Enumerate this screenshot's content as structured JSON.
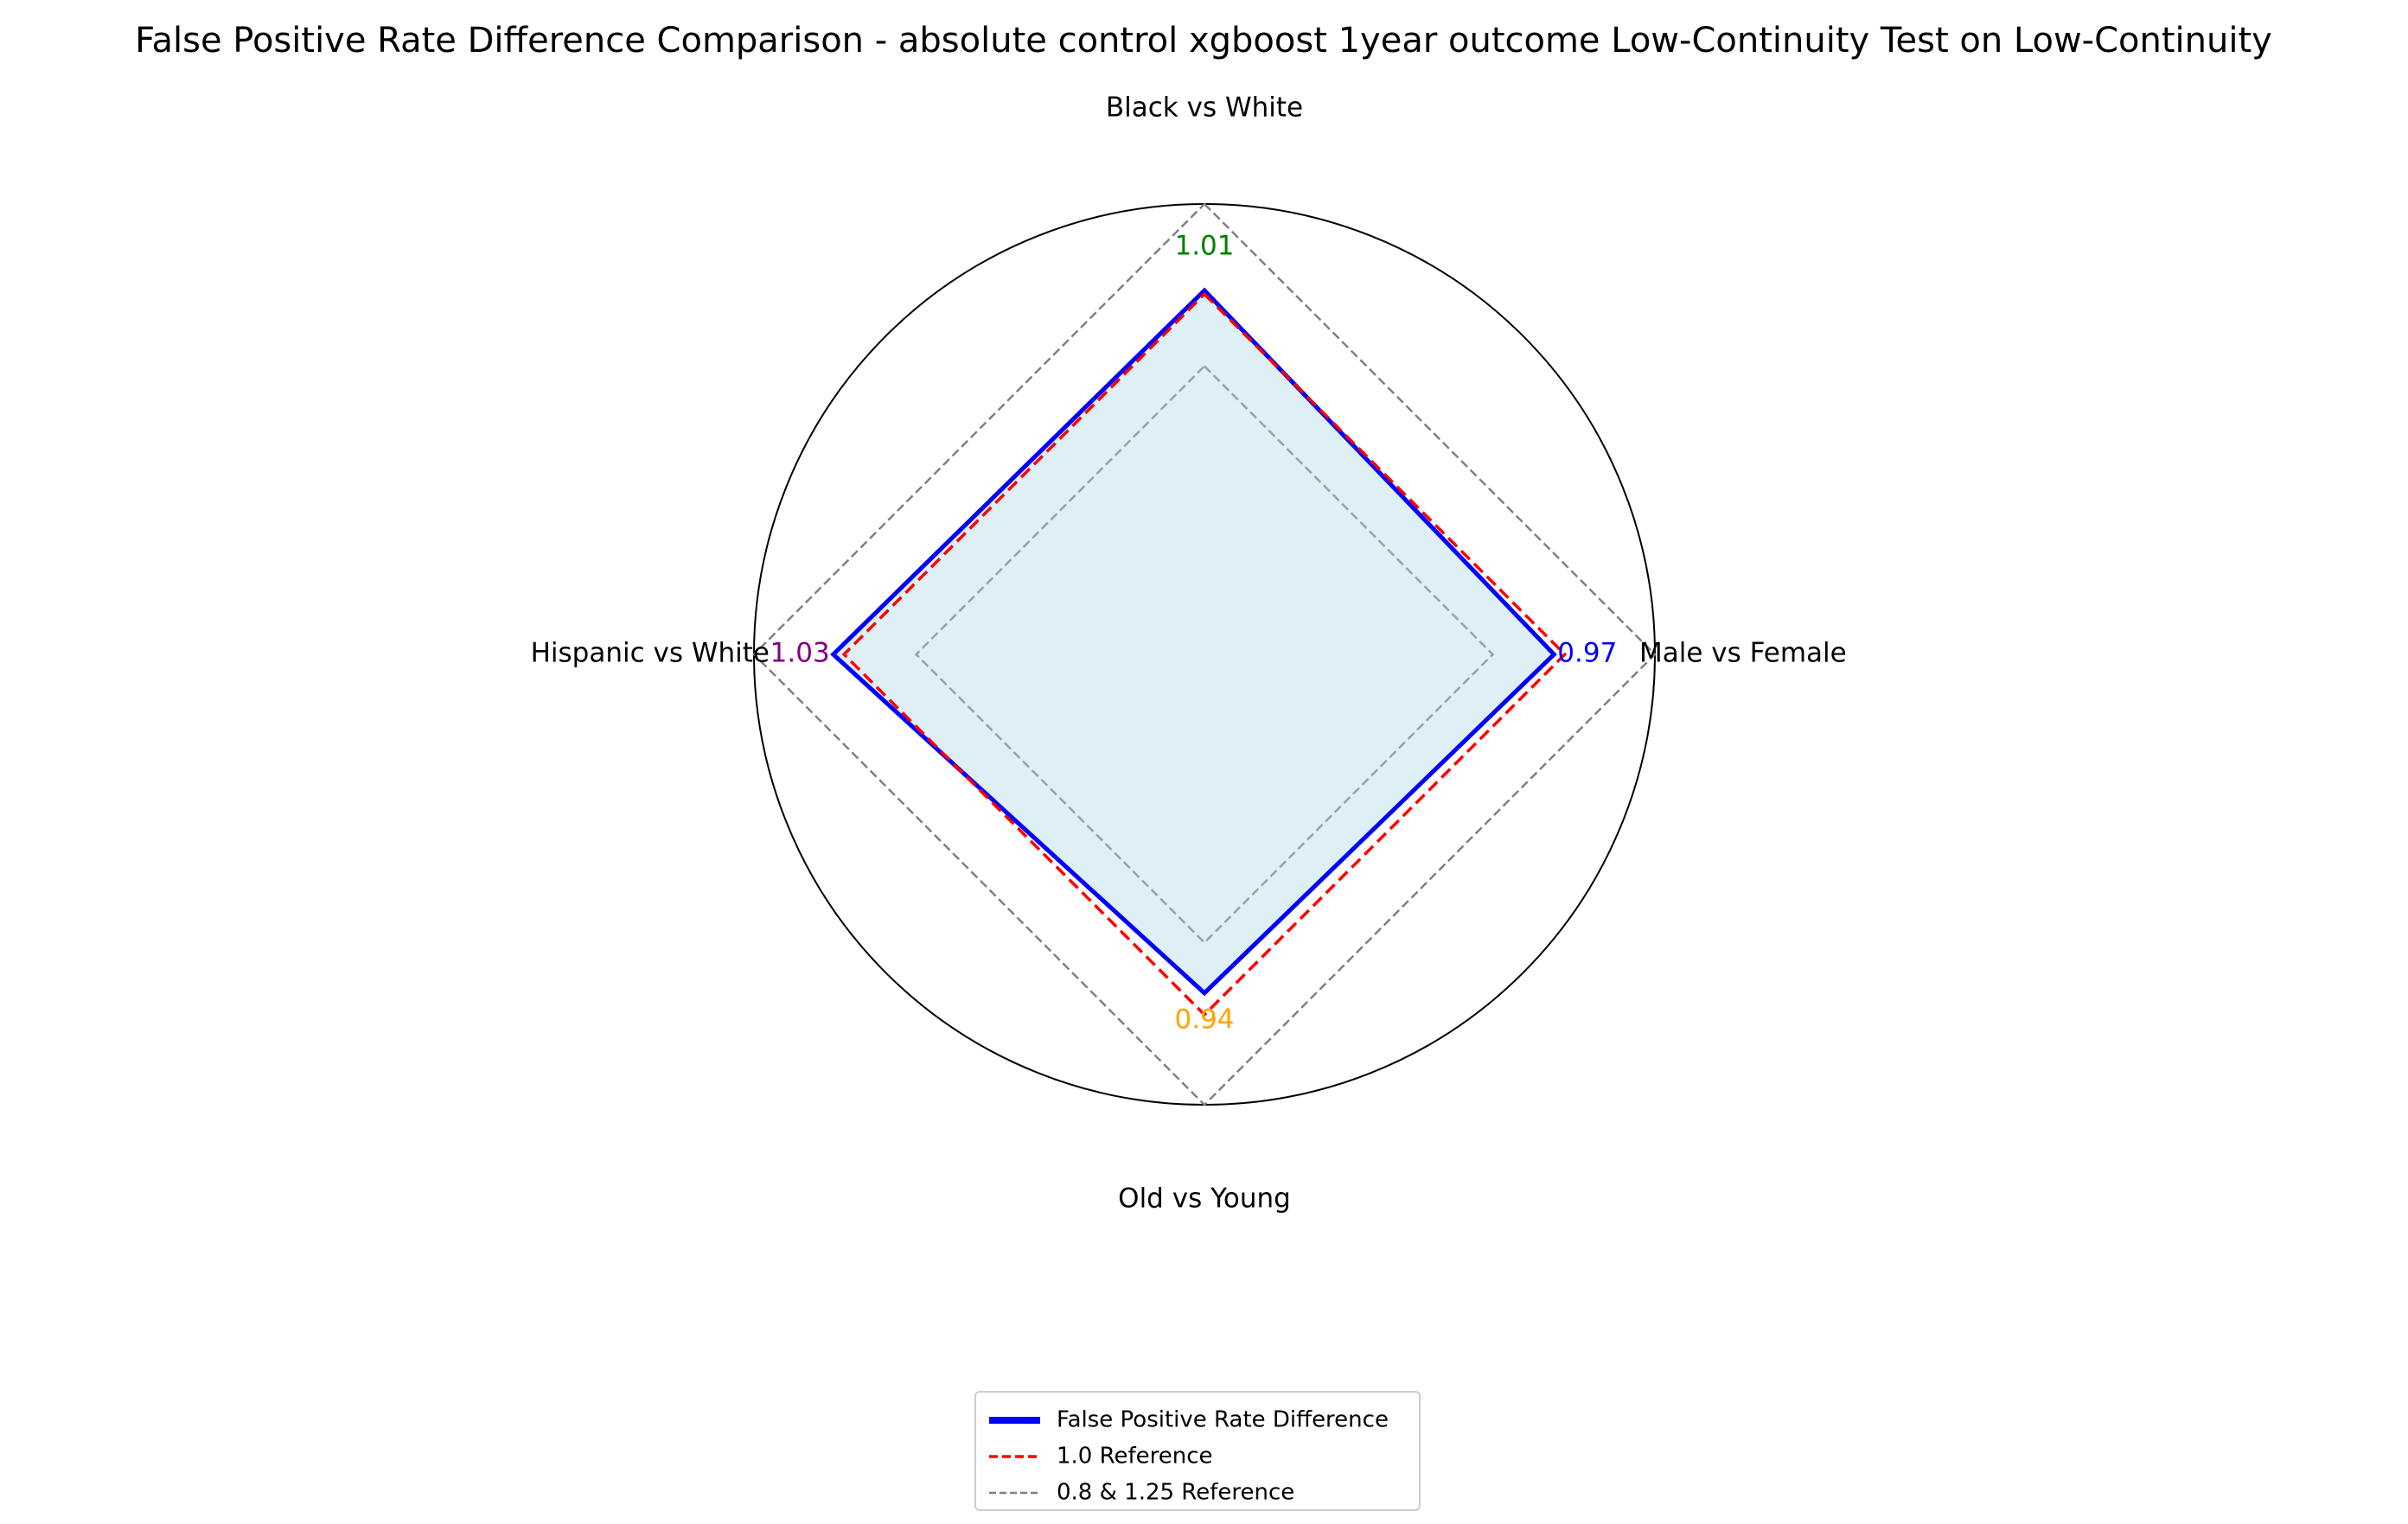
{
  "chart_data": {
    "type": "radar",
    "title": "False Positive Rate Difference Comparison - absolute control xgboost 1year outcome Low-Continuity Test on Low-Continuity",
    "categories": [
      "Black vs White",
      "Male vs Female",
      "Old vs Young",
      "Hispanic vs White"
    ],
    "series": [
      {
        "name": "False Positive Rate Difference",
        "values": [
          1.01,
          0.97,
          0.94,
          1.03
        ],
        "color": "#0000ff",
        "fill": "#add8e6"
      }
    ],
    "value_labels": [
      "1.01",
      "0.97",
      "0.94",
      "1.03"
    ],
    "value_label_colors": [
      "#008000",
      "#0000ff",
      "#ffa500",
      "#800080"
    ],
    "reference_lines": [
      {
        "name": "1.0 Reference",
        "value": 1.0,
        "color": "#ff0000",
        "style": "dashed"
      },
      {
        "name": "0.8 & 1.25 Reference",
        "values": [
          0.8,
          1.25
        ],
        "color": "#808080",
        "style": "dashed"
      }
    ],
    "rlim": [
      0,
      1.25
    ],
    "grid": false,
    "legend_placement": "bottom-center"
  }
}
